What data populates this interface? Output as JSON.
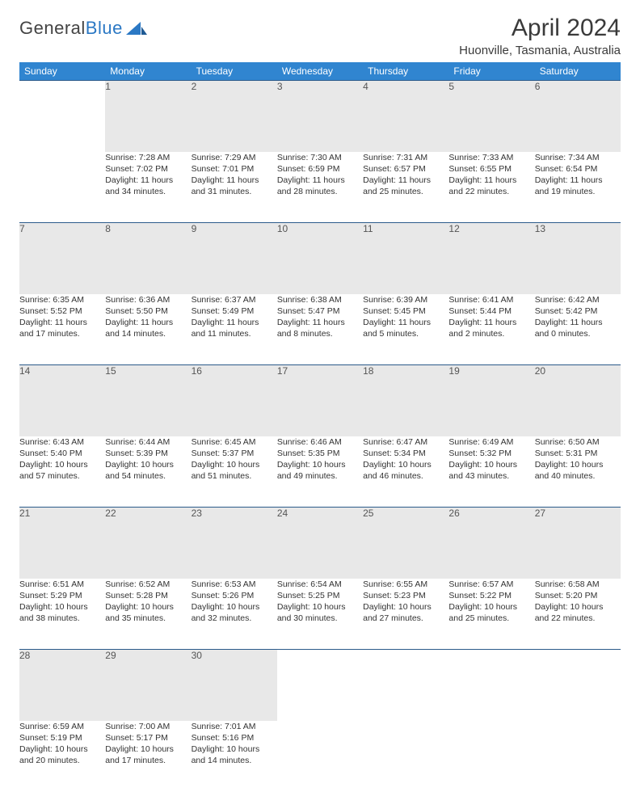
{
  "brand": {
    "part1": "General",
    "part2": "Blue"
  },
  "title": "April 2024",
  "location": "Huonville, Tasmania, Australia",
  "dayHeaders": [
    "Sunday",
    "Monday",
    "Tuesday",
    "Wednesday",
    "Thursday",
    "Friday",
    "Saturday"
  ],
  "colors": {
    "header_bg": "#3085d0",
    "header_text": "#ffffff",
    "daynum_bg": "#e8e8e8",
    "row_border": "#2b5a8a",
    "brand_blue": "#2b78c4"
  },
  "weeks": [
    [
      null,
      {
        "n": "1",
        "sr": "Sunrise: 7:28 AM",
        "ss": "Sunset: 7:02 PM",
        "d1": "Daylight: 11 hours",
        "d2": "and 34 minutes."
      },
      {
        "n": "2",
        "sr": "Sunrise: 7:29 AM",
        "ss": "Sunset: 7:01 PM",
        "d1": "Daylight: 11 hours",
        "d2": "and 31 minutes."
      },
      {
        "n": "3",
        "sr": "Sunrise: 7:30 AM",
        "ss": "Sunset: 6:59 PM",
        "d1": "Daylight: 11 hours",
        "d2": "and 28 minutes."
      },
      {
        "n": "4",
        "sr": "Sunrise: 7:31 AM",
        "ss": "Sunset: 6:57 PM",
        "d1": "Daylight: 11 hours",
        "d2": "and 25 minutes."
      },
      {
        "n": "5",
        "sr": "Sunrise: 7:33 AM",
        "ss": "Sunset: 6:55 PM",
        "d1": "Daylight: 11 hours",
        "d2": "and 22 minutes."
      },
      {
        "n": "6",
        "sr": "Sunrise: 7:34 AM",
        "ss": "Sunset: 6:54 PM",
        "d1": "Daylight: 11 hours",
        "d2": "and 19 minutes."
      }
    ],
    [
      {
        "n": "7",
        "sr": "Sunrise: 6:35 AM",
        "ss": "Sunset: 5:52 PM",
        "d1": "Daylight: 11 hours",
        "d2": "and 17 minutes."
      },
      {
        "n": "8",
        "sr": "Sunrise: 6:36 AM",
        "ss": "Sunset: 5:50 PM",
        "d1": "Daylight: 11 hours",
        "d2": "and 14 minutes."
      },
      {
        "n": "9",
        "sr": "Sunrise: 6:37 AM",
        "ss": "Sunset: 5:49 PM",
        "d1": "Daylight: 11 hours",
        "d2": "and 11 minutes."
      },
      {
        "n": "10",
        "sr": "Sunrise: 6:38 AM",
        "ss": "Sunset: 5:47 PM",
        "d1": "Daylight: 11 hours",
        "d2": "and 8 minutes."
      },
      {
        "n": "11",
        "sr": "Sunrise: 6:39 AM",
        "ss": "Sunset: 5:45 PM",
        "d1": "Daylight: 11 hours",
        "d2": "and 5 minutes."
      },
      {
        "n": "12",
        "sr": "Sunrise: 6:41 AM",
        "ss": "Sunset: 5:44 PM",
        "d1": "Daylight: 11 hours",
        "d2": "and 2 minutes."
      },
      {
        "n": "13",
        "sr": "Sunrise: 6:42 AM",
        "ss": "Sunset: 5:42 PM",
        "d1": "Daylight: 11 hours",
        "d2": "and 0 minutes."
      }
    ],
    [
      {
        "n": "14",
        "sr": "Sunrise: 6:43 AM",
        "ss": "Sunset: 5:40 PM",
        "d1": "Daylight: 10 hours",
        "d2": "and 57 minutes."
      },
      {
        "n": "15",
        "sr": "Sunrise: 6:44 AM",
        "ss": "Sunset: 5:39 PM",
        "d1": "Daylight: 10 hours",
        "d2": "and 54 minutes."
      },
      {
        "n": "16",
        "sr": "Sunrise: 6:45 AM",
        "ss": "Sunset: 5:37 PM",
        "d1": "Daylight: 10 hours",
        "d2": "and 51 minutes."
      },
      {
        "n": "17",
        "sr": "Sunrise: 6:46 AM",
        "ss": "Sunset: 5:35 PM",
        "d1": "Daylight: 10 hours",
        "d2": "and 49 minutes."
      },
      {
        "n": "18",
        "sr": "Sunrise: 6:47 AM",
        "ss": "Sunset: 5:34 PM",
        "d1": "Daylight: 10 hours",
        "d2": "and 46 minutes."
      },
      {
        "n": "19",
        "sr": "Sunrise: 6:49 AM",
        "ss": "Sunset: 5:32 PM",
        "d1": "Daylight: 10 hours",
        "d2": "and 43 minutes."
      },
      {
        "n": "20",
        "sr": "Sunrise: 6:50 AM",
        "ss": "Sunset: 5:31 PM",
        "d1": "Daylight: 10 hours",
        "d2": "and 40 minutes."
      }
    ],
    [
      {
        "n": "21",
        "sr": "Sunrise: 6:51 AM",
        "ss": "Sunset: 5:29 PM",
        "d1": "Daylight: 10 hours",
        "d2": "and 38 minutes."
      },
      {
        "n": "22",
        "sr": "Sunrise: 6:52 AM",
        "ss": "Sunset: 5:28 PM",
        "d1": "Daylight: 10 hours",
        "d2": "and 35 minutes."
      },
      {
        "n": "23",
        "sr": "Sunrise: 6:53 AM",
        "ss": "Sunset: 5:26 PM",
        "d1": "Daylight: 10 hours",
        "d2": "and 32 minutes."
      },
      {
        "n": "24",
        "sr": "Sunrise: 6:54 AM",
        "ss": "Sunset: 5:25 PM",
        "d1": "Daylight: 10 hours",
        "d2": "and 30 minutes."
      },
      {
        "n": "25",
        "sr": "Sunrise: 6:55 AM",
        "ss": "Sunset: 5:23 PM",
        "d1": "Daylight: 10 hours",
        "d2": "and 27 minutes."
      },
      {
        "n": "26",
        "sr": "Sunrise: 6:57 AM",
        "ss": "Sunset: 5:22 PM",
        "d1": "Daylight: 10 hours",
        "d2": "and 25 minutes."
      },
      {
        "n": "27",
        "sr": "Sunrise: 6:58 AM",
        "ss": "Sunset: 5:20 PM",
        "d1": "Daylight: 10 hours",
        "d2": "and 22 minutes."
      }
    ],
    [
      {
        "n": "28",
        "sr": "Sunrise: 6:59 AM",
        "ss": "Sunset: 5:19 PM",
        "d1": "Daylight: 10 hours",
        "d2": "and 20 minutes."
      },
      {
        "n": "29",
        "sr": "Sunrise: 7:00 AM",
        "ss": "Sunset: 5:17 PM",
        "d1": "Daylight: 10 hours",
        "d2": "and 17 minutes."
      },
      {
        "n": "30",
        "sr": "Sunrise: 7:01 AM",
        "ss": "Sunset: 5:16 PM",
        "d1": "Daylight: 10 hours",
        "d2": "and 14 minutes."
      },
      null,
      null,
      null,
      null
    ]
  ]
}
